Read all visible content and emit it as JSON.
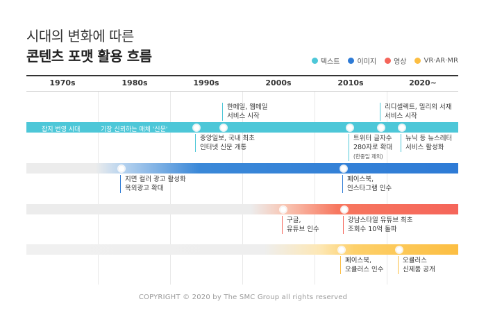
{
  "title": {
    "line1": "시대의 변화에 따른",
    "line2": "콘텐츠 포맷 활용 흐름"
  },
  "legend": [
    {
      "label": "텍스트",
      "color": "#4dc7d8"
    },
    {
      "label": "이미지",
      "color": "#2e7bd6"
    },
    {
      "label": "영상",
      "color": "#f5655a"
    },
    {
      "label": "VR·AR·MR",
      "color": "#fcbe42"
    }
  ],
  "decades": [
    "1970s",
    "1980s",
    "1990s",
    "2000s",
    "2010s",
    "2020~"
  ],
  "text_track": {
    "era1": "잡지 번영 시대",
    "era2": "기장 신뢰하는 매체 '신문'",
    "events": {
      "e1": {
        "line1": "중앙일보, 국내 최초",
        "line2": "인터넷 신문 개통"
      },
      "e2": {
        "line1": "한메일, 웹메일",
        "line2": "서비스 시작"
      },
      "e3": {
        "line1": "트위터 글자수",
        "line2": "280자로 확대",
        "line3": "(한중일 제외)"
      },
      "e4": {
        "line1": "리디셀렉트, 밀리의 서재",
        "line2": "서비스 시작"
      },
      "e5": {
        "line1": "뉴닉 등 뉴스레터",
        "line2": "서비스 활성화"
      }
    }
  },
  "image_track": {
    "events": {
      "e1": {
        "line1": "지면 컬러 광고 활성화",
        "line2": "옥외광고 확대"
      },
      "e2": {
        "line1": "페이스북,",
        "line2": "인스타그램 인수"
      }
    }
  },
  "video_track": {
    "events": {
      "e1": {
        "line1": "구글,",
        "line2": "유튜브 인수"
      },
      "e2": {
        "line1": "강남스타일 유튜브 최초",
        "line2": "조회수 10억 돌파"
      }
    }
  },
  "vr_track": {
    "events": {
      "e1": {
        "line1": "페이스북,",
        "line2": "오큘러스 인수"
      },
      "e2": {
        "line1": "오큘러스",
        "line2": "신제품 공개"
      }
    }
  },
  "footer": "COPYRIGHT © 2020 by The SMC Group all rights reserved"
}
